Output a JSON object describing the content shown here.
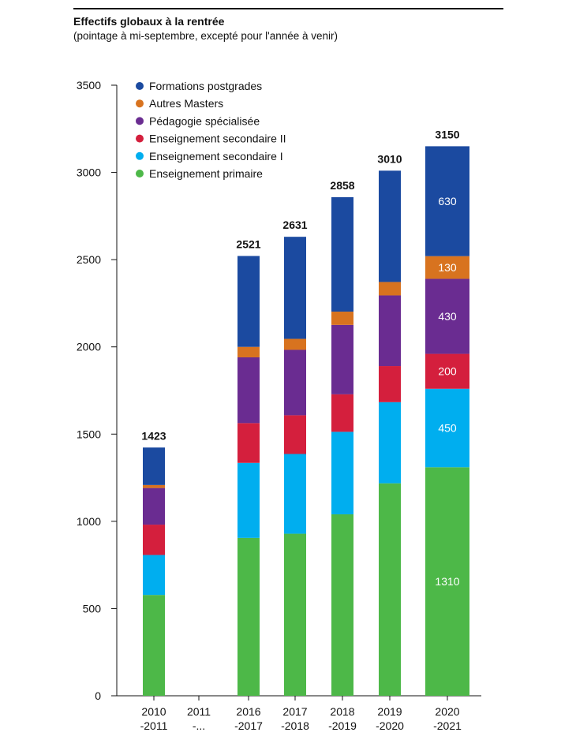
{
  "chart_data": {
    "type": "bar",
    "stacked": true,
    "title": "Effectifs globaux à la rentrée",
    "subtitle": "(pointage à mi-septembre, excepté pour l'année à venir)",
    "categories": [
      [
        "2010",
        "-2011"
      ],
      [
        "2011",
        "-..."
      ],
      [
        "2016",
        "-2017"
      ],
      [
        "2017",
        "-2018"
      ],
      [
        "2018",
        "-2019"
      ],
      [
        "2019",
        "-2020"
      ],
      [
        "2020",
        "-2021"
      ]
    ],
    "ylim": [
      0,
      3500
    ],
    "yticks": [
      0,
      500,
      1000,
      1500,
      2000,
      2500,
      3000,
      3500
    ],
    "legend_position": "top-left",
    "series": [
      {
        "name": "Enseignement primaire",
        "color": "#4db848",
        "values": [
          578,
          null,
          905,
          929,
          1040,
          1218,
          1310
        ]
      },
      {
        "name": "Enseignement secondaire I",
        "color": "#00aeef",
        "values": [
          229,
          null,
          430,
          457,
          473,
          465,
          450
        ]
      },
      {
        "name": "Enseignement secondaire II",
        "color": "#d41f3d",
        "values": [
          174,
          null,
          228,
          222,
          215,
          207,
          200
        ]
      },
      {
        "name": "Pédagogie spécialisée",
        "color": "#6a2c91",
        "values": [
          210,
          null,
          377,
          375,
          398,
          405,
          430
        ]
      },
      {
        "name": "Autres Masters",
        "color": "#d8731f",
        "values": [
          17,
          null,
          60,
          63,
          76,
          77,
          130
        ]
      },
      {
        "name": "Formations postgrades",
        "color": "#1b4aa0",
        "values": [
          215,
          null,
          521,
          585,
          656,
          638,
          630
        ]
      }
    ],
    "totals": [
      1423,
      null,
      2521,
      2631,
      2858,
      3010,
      3150
    ],
    "data_labels": {
      "category_index": 6,
      "values": [
        "1310",
        "450",
        "200",
        "430",
        "130",
        "630"
      ]
    },
    "legend_order": [
      "Formations postgrades",
      "Autres Masters",
      "Pédagogie spécialisée",
      "Enseignement secondaire II",
      "Enseignement secondaire I",
      "Enseignement primaire"
    ]
  }
}
